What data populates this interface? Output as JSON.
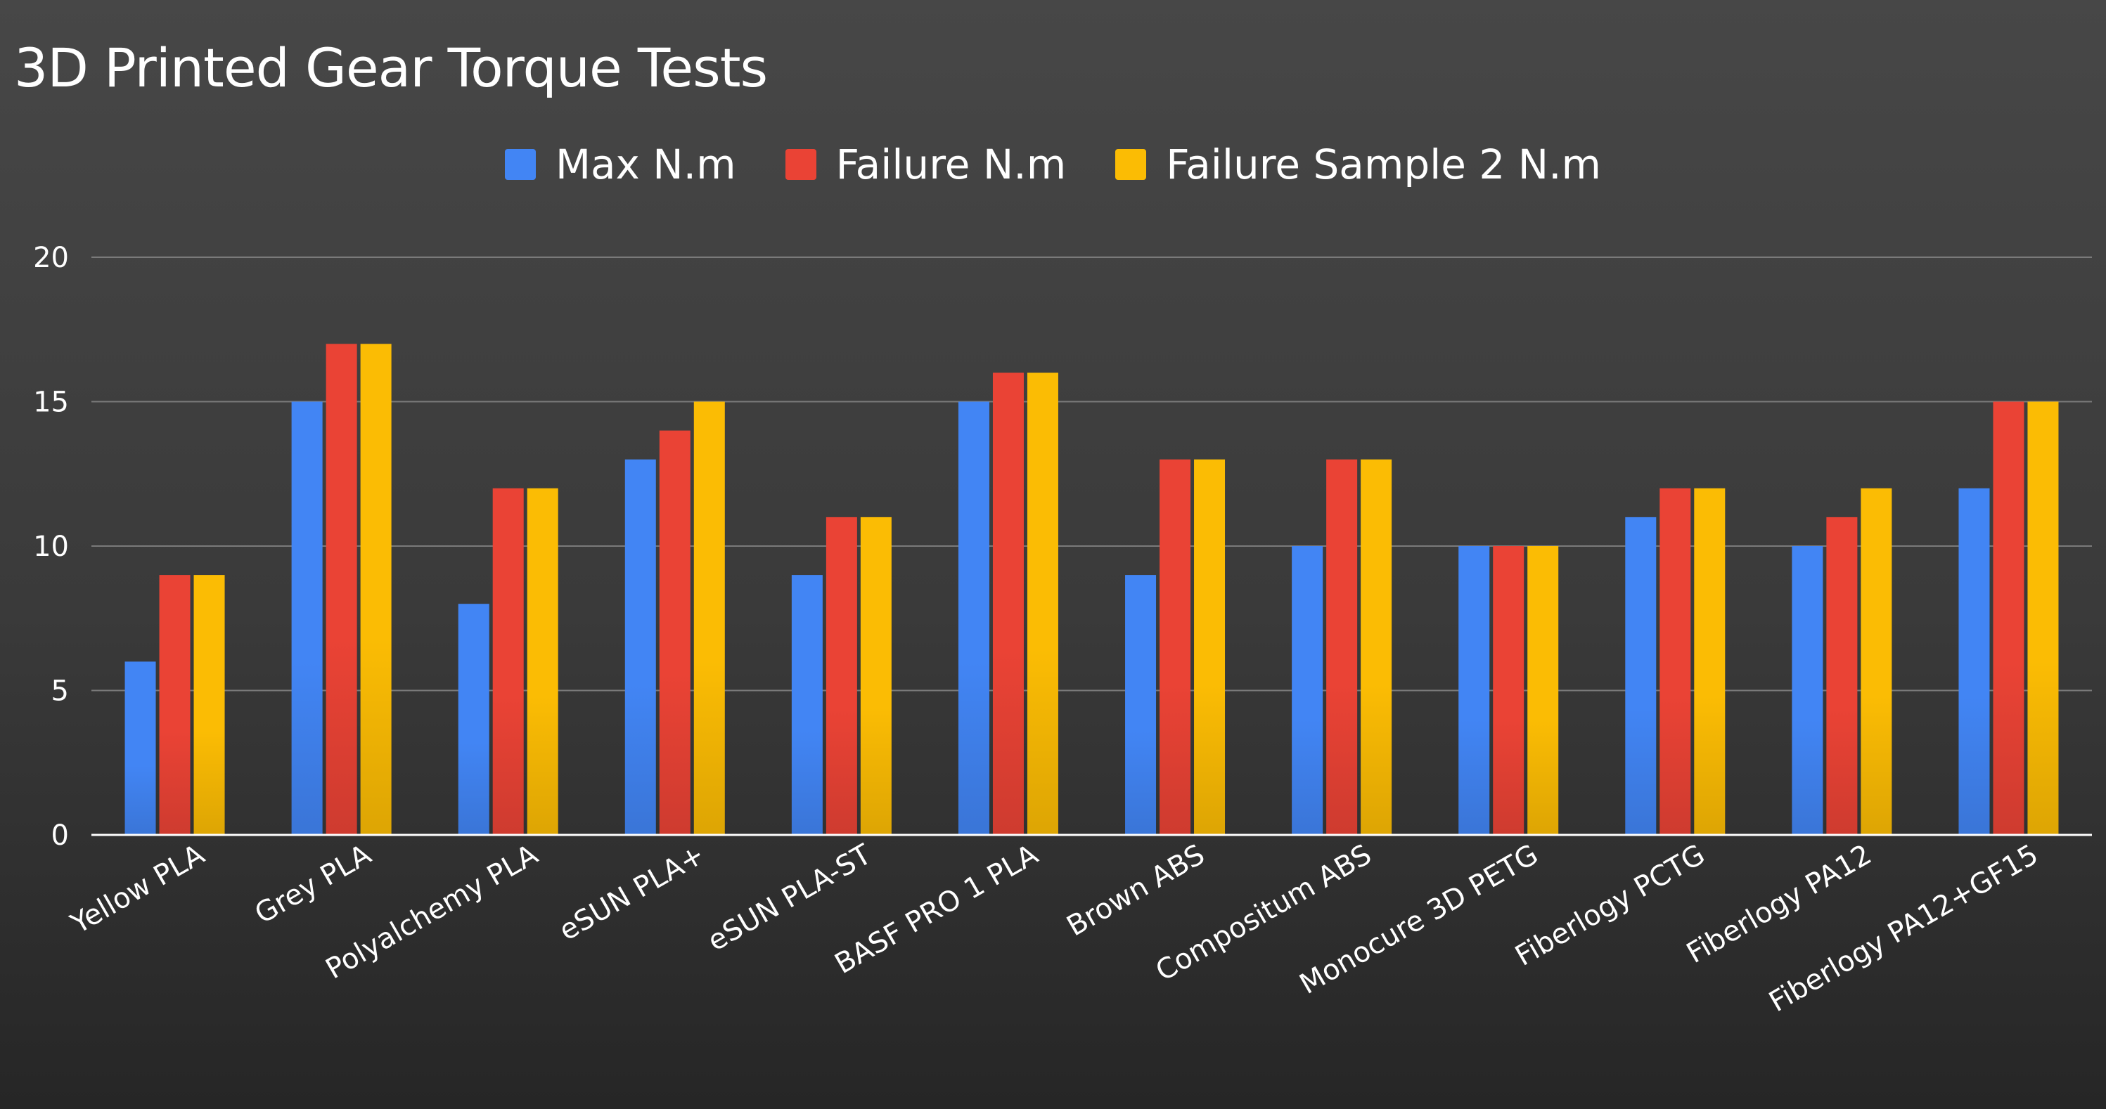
{
  "chart_data": {
    "type": "bar",
    "title": "3D Printed Gear Torque Tests",
    "xlabel": "",
    "ylabel": "",
    "ylim": [
      0,
      20
    ],
    "yticks": [
      0,
      5,
      10,
      15,
      20
    ],
    "grid": true,
    "legend_position": "top-center",
    "categories": [
      "Yellow PLA",
      "Grey PLA",
      "Polyalchemy PLA",
      "eSUN PLA+",
      "eSUN PLA-ST",
      "BASF PRO 1 PLA",
      "Brown ABS",
      "Compositum ABS",
      "Monocure 3D PETG",
      "Fiberlogy PCTG",
      "Fiberlogy PA12",
      "Fiberlogy PA12+GF15"
    ],
    "series": [
      {
        "name": "Max N.m",
        "color": "#4285f4",
        "values": [
          6,
          15,
          8,
          13,
          9,
          15,
          9,
          10,
          10,
          11,
          10,
          12
        ]
      },
      {
        "name": "Failure N.m",
        "color": "#ea4335",
        "values": [
          9,
          17,
          12,
          14,
          11,
          16,
          13,
          13,
          10,
          12,
          11,
          15
        ]
      },
      {
        "name": "Failure Sample 2 N.m",
        "color": "#fbbc04",
        "values": [
          9,
          17,
          12,
          15,
          11,
          16,
          13,
          13,
          10,
          12,
          12,
          15
        ]
      }
    ]
  }
}
